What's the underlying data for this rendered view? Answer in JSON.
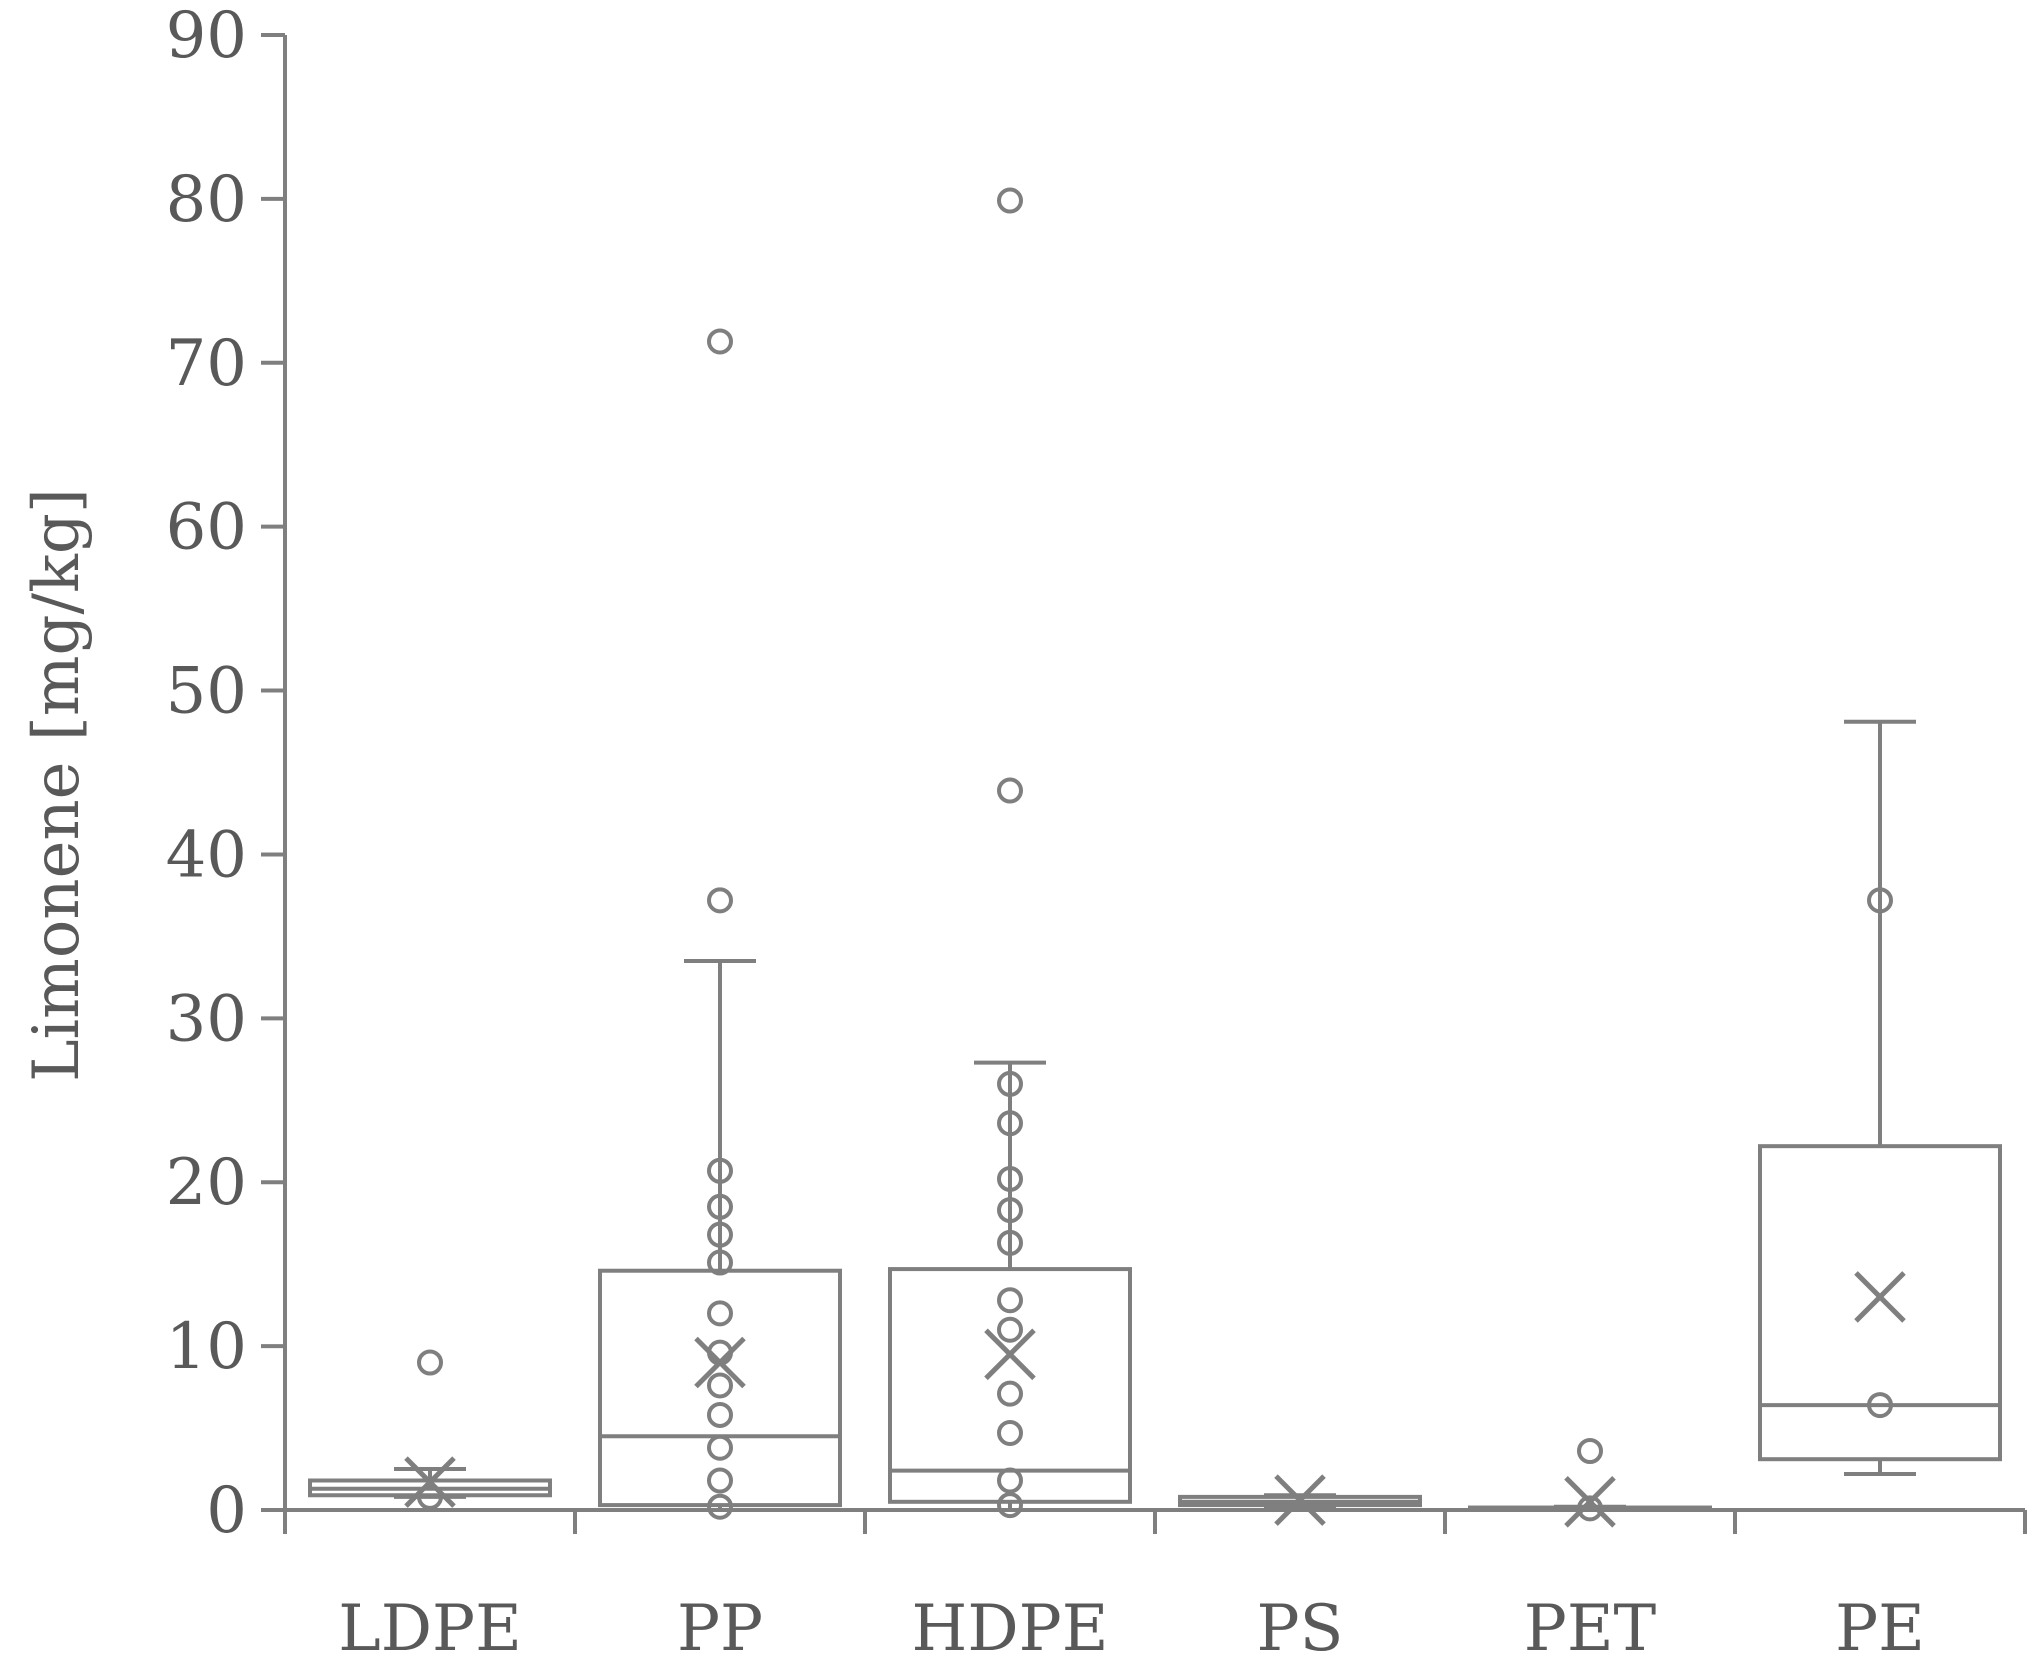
{
  "chart_data": {
    "type": "box",
    "ylabel": "Limonene [mg/kg]",
    "xlabel": "",
    "ylim": [
      0,
      90
    ],
    "yticks": [
      0,
      10,
      20,
      30,
      40,
      50,
      60,
      70,
      80,
      90
    ],
    "categories": [
      "LDPE",
      "PP",
      "HDPE",
      "PS",
      "PET",
      "PE"
    ],
    "grid": false,
    "legend": "none",
    "colors": {
      "stroke": "#7f7f7f",
      "text": "#595959",
      "background": "#ffffff"
    },
    "boxes": [
      {
        "category": "LDPE",
        "min": 0.8,
        "q1": 0.9,
        "median": 1.3,
        "q3": 1.8,
        "max": 2.5,
        "mean": 1.7,
        "outliers": [
          9.0,
          0.8
        ]
      },
      {
        "category": "PP",
        "min": 0.0,
        "q1": 0.3,
        "median": 4.5,
        "q3": 14.6,
        "max": 33.5,
        "mean": 9.0,
        "outliers": [
          71.3,
          37.2,
          20.7,
          18.5,
          16.8,
          15.1,
          12.0,
          9.6,
          7.6,
          5.8,
          3.8,
          1.8,
          0.2
        ]
      },
      {
        "category": "HDPE",
        "min": 0.0,
        "q1": 0.5,
        "median": 2.4,
        "q3": 14.7,
        "max": 27.3,
        "mean": 9.5,
        "outliers": [
          79.9,
          43.9,
          26.0,
          23.6,
          20.2,
          18.3,
          16.3,
          12.8,
          11.0,
          7.1,
          4.7,
          1.8,
          0.3
        ]
      },
      {
        "category": "PS",
        "min": 0.2,
        "q1": 0.3,
        "median": 0.5,
        "q3": 0.8,
        "max": 0.9,
        "mean": 0.6,
        "outliers": []
      },
      {
        "category": "PET",
        "min": 0.0,
        "q1": 0.05,
        "median": 0.1,
        "q3": 0.15,
        "max": 0.2,
        "mean": 0.5,
        "outliers": [
          3.6,
          0.1
        ]
      },
      {
        "category": "PE",
        "min": 2.2,
        "q1": 3.1,
        "median": 6.4,
        "q3": 22.2,
        "max": 48.1,
        "mean": 13.0,
        "outliers": [
          37.2,
          6.4
        ]
      }
    ]
  }
}
